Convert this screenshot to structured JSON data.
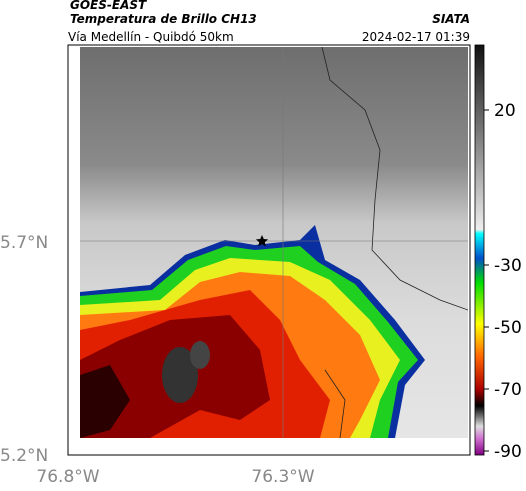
{
  "header": {
    "satellite": "GOES-EAST",
    "product": "Temperatura de Brillo CH13",
    "agency": "SIATA",
    "subtitle": "Vía Medellín - Quibdó 50km",
    "timestamp": "2024-02-17 01:39"
  },
  "map": {
    "lat_labels": [
      "5.7°N",
      "5.2°N"
    ],
    "lon_labels": [
      "76.8°W",
      "76.3°W"
    ]
  },
  "colorbar": {
    "ticks": [
      20,
      -30,
      -50,
      -70,
      -90
    ]
  }
}
